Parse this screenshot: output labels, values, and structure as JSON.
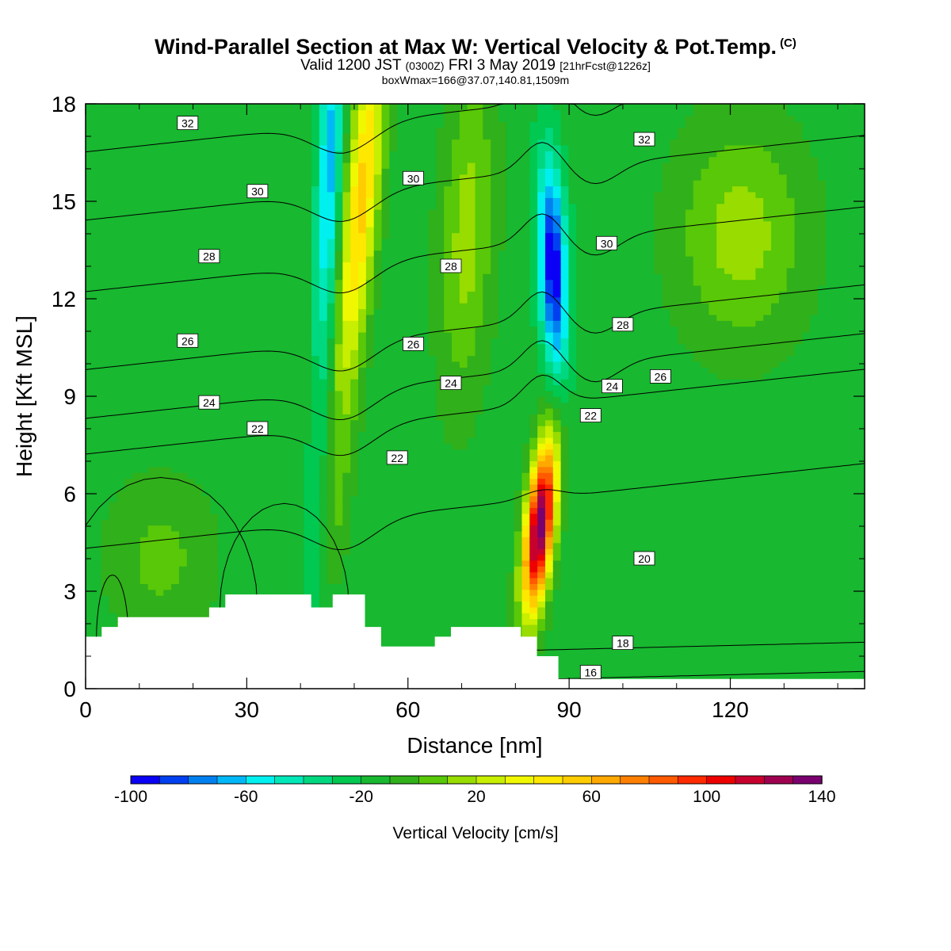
{
  "header": {
    "title": "Wind-Parallel Section at Max W: Vertical Velocity & Pot.Temp.",
    "copyright": "(C)",
    "valid_prefix": "Valid 1200 JST",
    "valid_utc": "(0300Z)",
    "valid_date": "FRI 3 May 2019",
    "forecast_tag": "[21hrFcst@1226z]",
    "box_info": "boxWmax=166@37.07,140.81,1509m"
  },
  "colors": {
    "terrain": "#ffffff",
    "contour": "#000000",
    "frame": "#000000"
  },
  "chart_data": {
    "type": "heatmap",
    "xlabel": "Distance [nm]",
    "ylabel": "Height [Kft MSL]",
    "xlim": [
      0,
      145
    ],
    "ylim": [
      0,
      18
    ],
    "x_ticks": [
      0,
      30,
      60,
      90,
      120
    ],
    "y_ticks": [
      0,
      3,
      6,
      9,
      12,
      15,
      18
    ],
    "field": {
      "name": "Vertical Velocity",
      "background_value": -15,
      "updrafts": [
        {
          "x": 84.5,
          "y": 5.0,
          "max": 140
        },
        {
          "x": 52,
          "y": 15.0,
          "max": 70
        },
        {
          "x": 71,
          "y": 14.0,
          "max": 30
        }
      ],
      "downdrafts": [
        {
          "x": 87,
          "y": 13.0,
          "min": -95
        },
        {
          "x": 43,
          "y": 16.0,
          "min": -60
        }
      ]
    },
    "terrain_profile": {
      "x": [
        0,
        3,
        6,
        13,
        23,
        26,
        39,
        42,
        46,
        52,
        55,
        65,
        68,
        81,
        84,
        88,
        91,
        145
      ],
      "height": [
        1.6,
        1.9,
        2.2,
        2.2,
        2.5,
        2.9,
        2.9,
        2.5,
        2.9,
        1.9,
        1.3,
        1.6,
        1.9,
        1.6,
        1.0,
        0.3,
        0.3,
        0.3
      ]
    },
    "contours": {
      "variable": "Potential Temperature",
      "levels": [
        16,
        18,
        20,
        22,
        24,
        26,
        28,
        30,
        32
      ],
      "labels": [
        {
          "text": "32",
          "x": 19,
          "y": 17.4
        },
        {
          "text": "30",
          "x": 32,
          "y": 15.3
        },
        {
          "text": "28",
          "x": 23,
          "y": 13.3
        },
        {
          "text": "26",
          "x": 19,
          "y": 10.7
        },
        {
          "text": "24",
          "x": 23,
          "y": 8.8
        },
        {
          "text": "22",
          "x": 32,
          "y": 8.0
        },
        {
          "text": "30",
          "x": 61,
          "y": 15.7
        },
        {
          "text": "28",
          "x": 68,
          "y": 13.0
        },
        {
          "text": "26",
          "x": 61,
          "y": 10.6
        },
        {
          "text": "24",
          "x": 68,
          "y": 9.4
        },
        {
          "text": "22",
          "x": 58,
          "y": 7.1
        },
        {
          "text": "32",
          "x": 104,
          "y": 16.9
        },
        {
          "text": "30",
          "x": 97,
          "y": 13.7
        },
        {
          "text": "28",
          "x": 100,
          "y": 11.2
        },
        {
          "text": "26",
          "x": 107,
          "y": 9.6
        },
        {
          "text": "24",
          "x": 98,
          "y": 9.3
        },
        {
          "text": "22",
          "x": 94,
          "y": 8.4
        },
        {
          "text": "20",
          "x": 104,
          "y": 4.0
        },
        {
          "text": "18",
          "x": 100,
          "y": 1.4
        },
        {
          "text": "16",
          "x": 94,
          "y": 0.5
        }
      ]
    },
    "colorbar": {
      "label": "Vertical Velocity [cm/s]",
      "min": -100,
      "max": 140,
      "step": 10,
      "tick_labels": [
        "-100",
        "-60",
        "-20",
        "20",
        "60",
        "100",
        "140"
      ],
      "tick_values": [
        -100,
        -60,
        -20,
        20,
        60,
        100,
        140
      ],
      "colors": [
        "#0a00f5",
        "#0040f0",
        "#0080f0",
        "#00b8f8",
        "#00f0f0",
        "#00e8b8",
        "#00d880",
        "#00c850",
        "#18b830",
        "#30b01a",
        "#58c808",
        "#98dc00",
        "#c8ee00",
        "#f0f800",
        "#ffe800",
        "#ffcc00",
        "#ffa800",
        "#ff8000",
        "#ff5a00",
        "#ff2a00",
        "#ee0000",
        "#c8002e",
        "#a00050",
        "#7a0070"
      ]
    }
  }
}
